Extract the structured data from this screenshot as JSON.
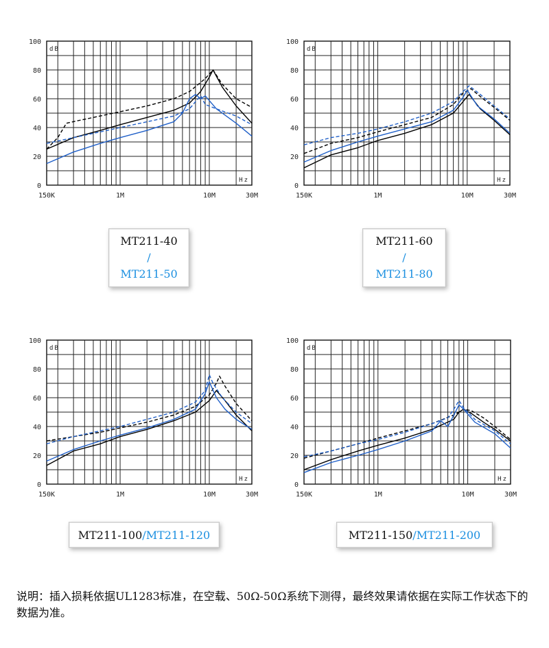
{
  "chart_data": [
    {
      "type": "line",
      "ylabel": "dB",
      "xlabel": "Hz",
      "ylim": [
        0,
        100
      ],
      "xlim": [
        0.15,
        30
      ],
      "x_scale": "log",
      "grid": true,
      "yticks": [
        "0",
        "20",
        "40",
        "60",
        "80",
        "100"
      ],
      "xticks": [
        "150K",
        "1M",
        "10M",
        "30M"
      ],
      "series": [
        {
          "style": "dashed",
          "color": "#000000",
          "points": [
            [
              0.15,
              25
            ],
            [
              0.2,
              33
            ],
            [
              0.25,
              43
            ],
            [
              0.35,
              45
            ],
            [
              0.5,
              47
            ],
            [
              1,
              51
            ],
            [
              2,
              55
            ],
            [
              4,
              60
            ],
            [
              6,
              65
            ],
            [
              9,
              74
            ],
            [
              11,
              80
            ],
            [
              14,
              70
            ],
            [
              20,
              60
            ],
            [
              30,
              54
            ]
          ]
        },
        {
          "style": "solid",
          "color": "#000000",
          "points": [
            [
              0.15,
              25
            ],
            [
              0.3,
              33
            ],
            [
              0.6,
              38
            ],
            [
              1,
              42
            ],
            [
              2,
              47
            ],
            [
              4,
              52
            ],
            [
              6,
              57
            ],
            [
              8,
              65
            ],
            [
              10,
              75
            ],
            [
              11,
              80
            ],
            [
              14,
              68
            ],
            [
              20,
              55
            ],
            [
              30,
              43
            ]
          ]
        },
        {
          "style": "dashed",
          "color": "#1f5fc8",
          "points": [
            [
              0.15,
              29
            ],
            [
              0.3,
              33
            ],
            [
              0.6,
              37
            ],
            [
              1,
              40
            ],
            [
              2,
              44
            ],
            [
              4,
              48
            ],
            [
              6,
              53
            ],
            [
              7,
              58
            ],
            [
              8,
              62
            ],
            [
              9,
              56
            ],
            [
              12,
              53
            ],
            [
              20,
              48
            ],
            [
              30,
              42
            ]
          ]
        },
        {
          "style": "solid",
          "color": "#1f5fc8",
          "points": [
            [
              0.15,
              15
            ],
            [
              0.3,
              23
            ],
            [
              0.6,
              29
            ],
            [
              1,
              33
            ],
            [
              2,
              38
            ],
            [
              4,
              44
            ],
            [
              5,
              50
            ],
            [
              6,
              60
            ],
            [
              7,
              63
            ],
            [
              8,
              60
            ],
            [
              9,
              62
            ],
            [
              12,
              53
            ],
            [
              20,
              43
            ],
            [
              30,
              34
            ]
          ]
        }
      ]
    },
    {
      "type": "line",
      "ylabel": "dB",
      "xlabel": "Hz",
      "ylim": [
        0,
        100
      ],
      "xlim": [
        0.15,
        30
      ],
      "x_scale": "log",
      "grid": true,
      "yticks": [
        "0",
        "20",
        "40",
        "60",
        "80",
        "100"
      ],
      "xticks": [
        "150K",
        "1M",
        "10M",
        "30M"
      ],
      "series": [
        {
          "style": "dashed",
          "color": "#000000",
          "points": [
            [
              0.15,
              22
            ],
            [
              0.3,
              29
            ],
            [
              0.6,
              33
            ],
            [
              1,
              37
            ],
            [
              2,
              42
            ],
            [
              4,
              47
            ],
            [
              7,
              56
            ],
            [
              9,
              64
            ],
            [
              11,
              67
            ],
            [
              15,
              60
            ],
            [
              20,
              54
            ],
            [
              30,
              45
            ]
          ]
        },
        {
          "style": "solid",
          "color": "#000000",
          "points": [
            [
              0.15,
              12
            ],
            [
              0.3,
              21
            ],
            [
              0.6,
              26
            ],
            [
              1,
              31
            ],
            [
              2,
              36
            ],
            [
              4,
              42
            ],
            [
              7,
              50
            ],
            [
              9,
              58
            ],
            [
              10.5,
              63
            ],
            [
              14,
              53
            ],
            [
              20,
              45
            ],
            [
              30,
              35
            ]
          ]
        },
        {
          "style": "dashed",
          "color": "#1f5fc8",
          "points": [
            [
              0.15,
              28
            ],
            [
              0.3,
              33
            ],
            [
              0.6,
              36
            ],
            [
              1,
              39
            ],
            [
              2,
              44
            ],
            [
              4,
              50
            ],
            [
              7,
              58
            ],
            [
              9,
              65
            ],
            [
              10.5,
              69
            ],
            [
              14,
              63
            ],
            [
              20,
              55
            ],
            [
              30,
              46
            ]
          ]
        },
        {
          "style": "solid",
          "color": "#1f5fc8",
          "points": [
            [
              0.15,
              16
            ],
            [
              0.3,
              24
            ],
            [
              0.6,
              30
            ],
            [
              1,
              34
            ],
            [
              2,
              39
            ],
            [
              4,
              44
            ],
            [
              7,
              52
            ],
            [
              9,
              61
            ],
            [
              10,
              66
            ],
            [
              13,
              55
            ],
            [
              20,
              46
            ],
            [
              30,
              36
            ]
          ]
        }
      ]
    },
    {
      "type": "line",
      "ylabel": "dB",
      "xlabel": "Hz",
      "ylim": [
        0,
        100
      ],
      "xlim": [
        0.15,
        30
      ],
      "x_scale": "log",
      "grid": true,
      "yticks": [
        "0",
        "20",
        "40",
        "60",
        "80",
        "100"
      ],
      "xticks": [
        "150K",
        "1M",
        "10M",
        "30M"
      ],
      "series": [
        {
          "style": "dashed",
          "color": "#000000",
          "points": [
            [
              0.15,
              30
            ],
            [
              0.3,
              33
            ],
            [
              0.6,
              36
            ],
            [
              1,
              39
            ],
            [
              2,
              43
            ],
            [
              4,
              48
            ],
            [
              7,
              54
            ],
            [
              10,
              62
            ],
            [
              12,
              70
            ],
            [
              13,
              75
            ],
            [
              15,
              68
            ],
            [
              20,
              56
            ],
            [
              30,
              44
            ]
          ]
        },
        {
          "style": "solid",
          "color": "#000000",
          "points": [
            [
              0.15,
              13
            ],
            [
              0.3,
              23
            ],
            [
              0.6,
              28
            ],
            [
              1,
              33
            ],
            [
              2,
              38
            ],
            [
              4,
              44
            ],
            [
              7,
              50
            ],
            [
              10,
              58
            ],
            [
              12,
              65
            ],
            [
              15,
              58
            ],
            [
              20,
              48
            ],
            [
              30,
              37
            ]
          ]
        },
        {
          "style": "dashed",
          "color": "#1f5fc8",
          "points": [
            [
              0.15,
              28
            ],
            [
              0.3,
              33
            ],
            [
              0.6,
              37
            ],
            [
              1,
              40
            ],
            [
              2,
              45
            ],
            [
              4,
              50
            ],
            [
              7,
              57
            ],
            [
              9,
              65
            ],
            [
              10,
              76
            ],
            [
              11,
              70
            ],
            [
              14,
              60
            ],
            [
              20,
              50
            ],
            [
              30,
              42
            ]
          ]
        },
        {
          "style": "solid",
          "color": "#1f5fc8",
          "points": [
            [
              0.15,
              16
            ],
            [
              0.3,
              24
            ],
            [
              0.6,
              30
            ],
            [
              1,
              34
            ],
            [
              2,
              39
            ],
            [
              4,
              45
            ],
            [
              7,
              52
            ],
            [
              9,
              63
            ],
            [
              10,
              71
            ],
            [
              12,
              60
            ],
            [
              15,
              52
            ],
            [
              20,
              45
            ],
            [
              30,
              38
            ]
          ]
        }
      ]
    },
    {
      "type": "line",
      "ylabel": "dB",
      "xlabel": "Hz",
      "ylim": [
        0,
        100
      ],
      "xlim": [
        0.15,
        30
      ],
      "x_scale": "log",
      "grid": true,
      "yticks": [
        "0",
        "20",
        "40",
        "60",
        "80",
        "100"
      ],
      "xticks": [
        "150K",
        "1M",
        "10M",
        "30M"
      ],
      "series": [
        {
          "style": "dashed",
          "color": "#000000",
          "points": [
            [
              0.15,
              18
            ],
            [
              0.3,
              23
            ],
            [
              0.6,
              28
            ],
            [
              1,
              32
            ],
            [
              2,
              37
            ],
            [
              4,
              42
            ],
            [
              7,
              48
            ],
            [
              9,
              52
            ],
            [
              11,
              51
            ],
            [
              15,
              46
            ],
            [
              20,
              40
            ],
            [
              30,
              31
            ]
          ]
        },
        {
          "style": "solid",
          "color": "#000000",
          "points": [
            [
              0.15,
              10
            ],
            [
              0.3,
              17
            ],
            [
              0.6,
              23
            ],
            [
              1,
              27
            ],
            [
              2,
              32
            ],
            [
              4,
              38
            ],
            [
              7,
              45
            ],
            [
              8,
              50
            ],
            [
              9,
              52
            ],
            [
              11,
              49
            ],
            [
              15,
              43
            ],
            [
              20,
              38
            ],
            [
              30,
              30
            ]
          ]
        },
        {
          "style": "dashed",
          "color": "#1f5fc8",
          "points": [
            [
              0.15,
              19
            ],
            [
              0.3,
              23
            ],
            [
              0.6,
              28
            ],
            [
              1,
              31
            ],
            [
              2,
              36
            ],
            [
              4,
              42
            ],
            [
              6,
              46
            ],
            [
              7,
              52
            ],
            [
              8,
              58
            ],
            [
              9,
              53
            ],
            [
              12,
              45
            ],
            [
              20,
              37
            ],
            [
              30,
              28
            ]
          ]
        },
        {
          "style": "solid",
          "color": "#1f5fc8",
          "points": [
            [
              0.15,
              8
            ],
            [
              0.3,
              15
            ],
            [
              0.6,
              20
            ],
            [
              1,
              24
            ],
            [
              2,
              30
            ],
            [
              4,
              37
            ],
            [
              5,
              44
            ],
            [
              6,
              40
            ],
            [
              7,
              48
            ],
            [
              8,
              55
            ],
            [
              9,
              52
            ],
            [
              12,
              43
            ],
            [
              20,
              35
            ],
            [
              30,
              25
            ]
          ]
        }
      ]
    }
  ],
  "labels": [
    {
      "black": "MT211-40",
      "sep": "/",
      "blue": "MT211-50"
    },
    {
      "black": "MT211-60",
      "sep": "/",
      "blue": "MT211-80"
    },
    {
      "black": "MT211-100",
      "sep": "/",
      "blue": "MT211-120"
    },
    {
      "black": "MT211-150",
      "sep": "/",
      "blue": "MT211-200"
    }
  ],
  "note": "说明：插入损耗依据UL1283标准，在空载、50Ω-50Ω系统下测得，最终效果请依据在实际工作状态下的数据为准。"
}
